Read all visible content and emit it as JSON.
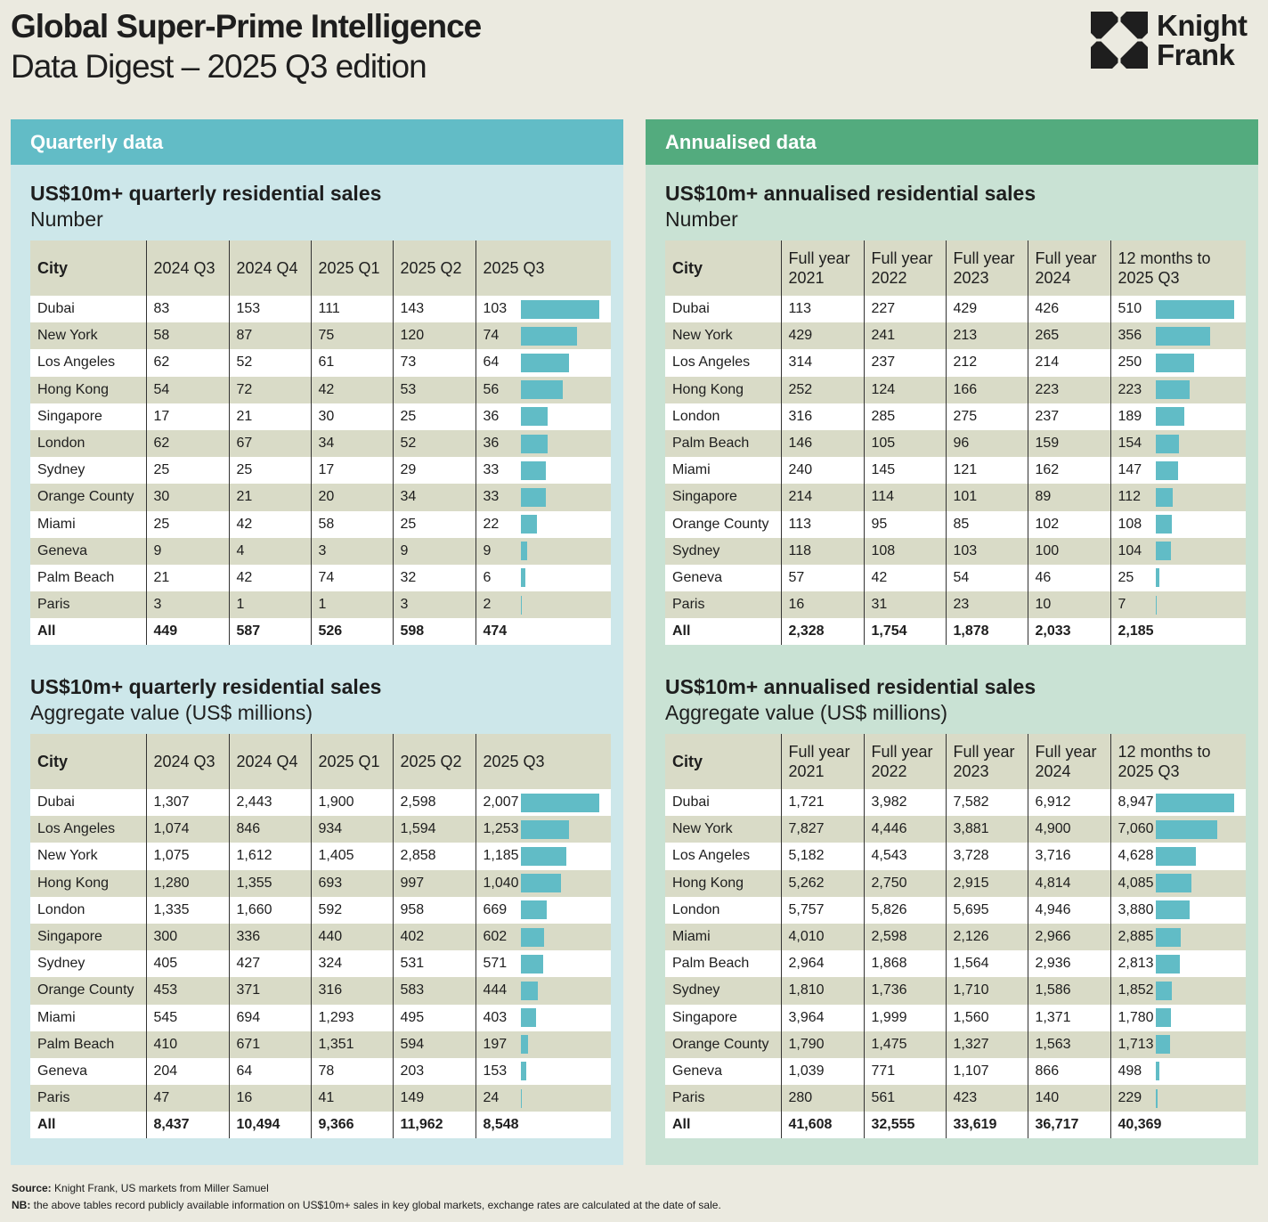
{
  "header": {
    "title": "Global Super-Prime Intelligence",
    "subtitle": "Data Digest – 2025 Q3 edition",
    "logo_line1": "Knight",
    "logo_line2": "Frank"
  },
  "colors": {
    "quarterly_accent": "#62bcc6",
    "quarterly_bg": "#cde7ea",
    "annualised_accent": "#53ab7e",
    "annualised_bg": "#c9e2d4",
    "bar": "#61bcc6",
    "row_alt": "#d9dbc7"
  },
  "quarterly": {
    "panel_title": "Quarterly data",
    "number_table": {
      "title": "US$10m+ quarterly residential sales",
      "subtitle": "Number",
      "headers": [
        "City",
        "2024 Q3",
        "2024 Q4",
        "2025 Q1",
        "2025 Q2",
        "2025 Q3"
      ],
      "rows": [
        [
          "Dubai",
          "83",
          "153",
          "111",
          "143",
          "103"
        ],
        [
          "New York",
          "58",
          "87",
          "75",
          "120",
          "74"
        ],
        [
          "Los Angeles",
          "62",
          "52",
          "61",
          "73",
          "64"
        ],
        [
          "Hong Kong",
          "54",
          "72",
          "42",
          "53",
          "56"
        ],
        [
          "Singapore",
          "17",
          "21",
          "30",
          "25",
          "36"
        ],
        [
          "London",
          "62",
          "67",
          "34",
          "52",
          "36"
        ],
        [
          "Sydney",
          "25",
          "25",
          "17",
          "29",
          "33"
        ],
        [
          "Orange County",
          "30",
          "21",
          "20",
          "34",
          "33"
        ],
        [
          "Miami",
          "25",
          "42",
          "58",
          "25",
          "22"
        ],
        [
          "Geneva",
          "9",
          "4",
          "3",
          "9",
          "9"
        ],
        [
          "Palm Beach",
          "21",
          "42",
          "74",
          "32",
          "6"
        ],
        [
          "Paris",
          "3",
          "1",
          "1",
          "3",
          "2"
        ]
      ],
      "total": [
        "All",
        "449",
        "587",
        "526",
        "598",
        "474"
      ]
    },
    "value_table": {
      "title": "US$10m+ quarterly residential sales",
      "subtitle": "Aggregate value (US$ millions)",
      "headers": [
        "City",
        "2024 Q3",
        "2024 Q4",
        "2025 Q1",
        "2025 Q2",
        "2025 Q3"
      ],
      "rows": [
        [
          "Dubai",
          "1,307",
          "2,443",
          "1,900",
          "2,598",
          "2,007"
        ],
        [
          "Los Angeles",
          "1,074",
          "846",
          "934",
          "1,594",
          "1,253"
        ],
        [
          "New York",
          "1,075",
          "1,612",
          "1,405",
          "2,858",
          "1,185"
        ],
        [
          "Hong Kong",
          "1,280",
          "1,355",
          "693",
          "997",
          "1,040"
        ],
        [
          "London",
          "1,335",
          "1,660",
          "592",
          "958",
          "669"
        ],
        [
          "Singapore",
          "300",
          "336",
          "440",
          "402",
          "602"
        ],
        [
          "Sydney",
          "405",
          "427",
          "324",
          "531",
          "571"
        ],
        [
          "Orange County",
          "453",
          "371",
          "316",
          "583",
          "444"
        ],
        [
          "Miami",
          "545",
          "694",
          "1,293",
          "495",
          "403"
        ],
        [
          "Palm Beach",
          "410",
          "671",
          "1,351",
          "594",
          "197"
        ],
        [
          "Geneva",
          "204",
          "64",
          "78",
          "203",
          "153"
        ],
        [
          "Paris",
          "47",
          "16",
          "41",
          "149",
          "24"
        ]
      ],
      "total": [
        "All",
        "8,437",
        "10,494",
        "9,366",
        "11,962",
        "8,548"
      ]
    }
  },
  "annualised": {
    "panel_title": "Annualised data",
    "number_table": {
      "title": "US$10m+ annualised residential sales",
      "subtitle": "Number",
      "headers": [
        "City",
        "Full year\n2021",
        "Full year\n2022",
        "Full year\n2023",
        "Full year\n2024",
        "12 months to\n2025 Q3"
      ],
      "rows": [
        [
          "Dubai",
          "113",
          "227",
          "429",
          "426",
          "510"
        ],
        [
          "New York",
          "429",
          "241",
          "213",
          "265",
          "356"
        ],
        [
          "Los Angeles",
          "314",
          "237",
          "212",
          "214",
          "250"
        ],
        [
          "Hong Kong",
          "252",
          "124",
          "166",
          "223",
          "223"
        ],
        [
          "London",
          "316",
          "285",
          "275",
          "237",
          "189"
        ],
        [
          "Palm Beach",
          "146",
          "105",
          "96",
          "159",
          "154"
        ],
        [
          "Miami",
          "240",
          "145",
          "121",
          "162",
          "147"
        ],
        [
          "Singapore",
          "214",
          "114",
          "101",
          "89",
          "112"
        ],
        [
          "Orange County",
          "113",
          "95",
          "85",
          "102",
          "108"
        ],
        [
          "Sydney",
          "118",
          "108",
          "103",
          "100",
          "104"
        ],
        [
          "Geneva",
          "57",
          "42",
          "54",
          "46",
          "25"
        ],
        [
          "Paris",
          "16",
          "31",
          "23",
          "10",
          "7"
        ]
      ],
      "total": [
        "All",
        "2,328",
        "1,754",
        "1,878",
        "2,033",
        "2,185"
      ]
    },
    "value_table": {
      "title": "US$10m+ annualised residential sales",
      "subtitle": "Aggregate value (US$ millions)",
      "headers": [
        "City",
        "Full year\n2021",
        "Full year\n2022",
        "Full year\n2023",
        "Full year\n2024",
        "12 months to\n2025 Q3"
      ],
      "rows": [
        [
          "Dubai",
          "1,721",
          "3,982",
          "7,582",
          "6,912",
          "8,947"
        ],
        [
          "New York",
          "7,827",
          "4,446",
          "3,881",
          "4,900",
          "7,060"
        ],
        [
          "Los Angeles",
          "5,182",
          "4,543",
          "3,728",
          "3,716",
          "4,628"
        ],
        [
          "Hong Kong",
          "5,262",
          "2,750",
          "2,915",
          "4,814",
          "4,085"
        ],
        [
          "London",
          "5,757",
          "5,826",
          "5,695",
          "4,946",
          "3,880"
        ],
        [
          "Miami",
          "4,010",
          "2,598",
          "2,126",
          "2,966",
          "2,885"
        ],
        [
          "Palm Beach",
          "2,964",
          "1,868",
          "1,564",
          "2,936",
          "2,813"
        ],
        [
          "Sydney",
          "1,810",
          "1,736",
          "1,710",
          "1,586",
          "1,852"
        ],
        [
          "Singapore",
          "3,964",
          "1,999",
          "1,560",
          "1,371",
          "1,780"
        ],
        [
          "Orange County",
          "1,790",
          "1,475",
          "1,327",
          "1,563",
          "1,713"
        ],
        [
          "Geneva",
          "1,039",
          "771",
          "1,107",
          "866",
          "498"
        ],
        [
          "Paris",
          "280",
          "561",
          "423",
          "140",
          "229"
        ]
      ],
      "total": [
        "All",
        "41,608",
        "32,555",
        "33,619",
        "36,717",
        "40,369"
      ]
    }
  },
  "footer": {
    "source_label": "Source:",
    "source_text": " Knight Frank, US markets from Miller Samuel",
    "nb_label": "NB:",
    "nb_text": " the above tables record publicly available information on US$10m+ sales in key global markets, exchange rates are calculated at the date of sale."
  }
}
